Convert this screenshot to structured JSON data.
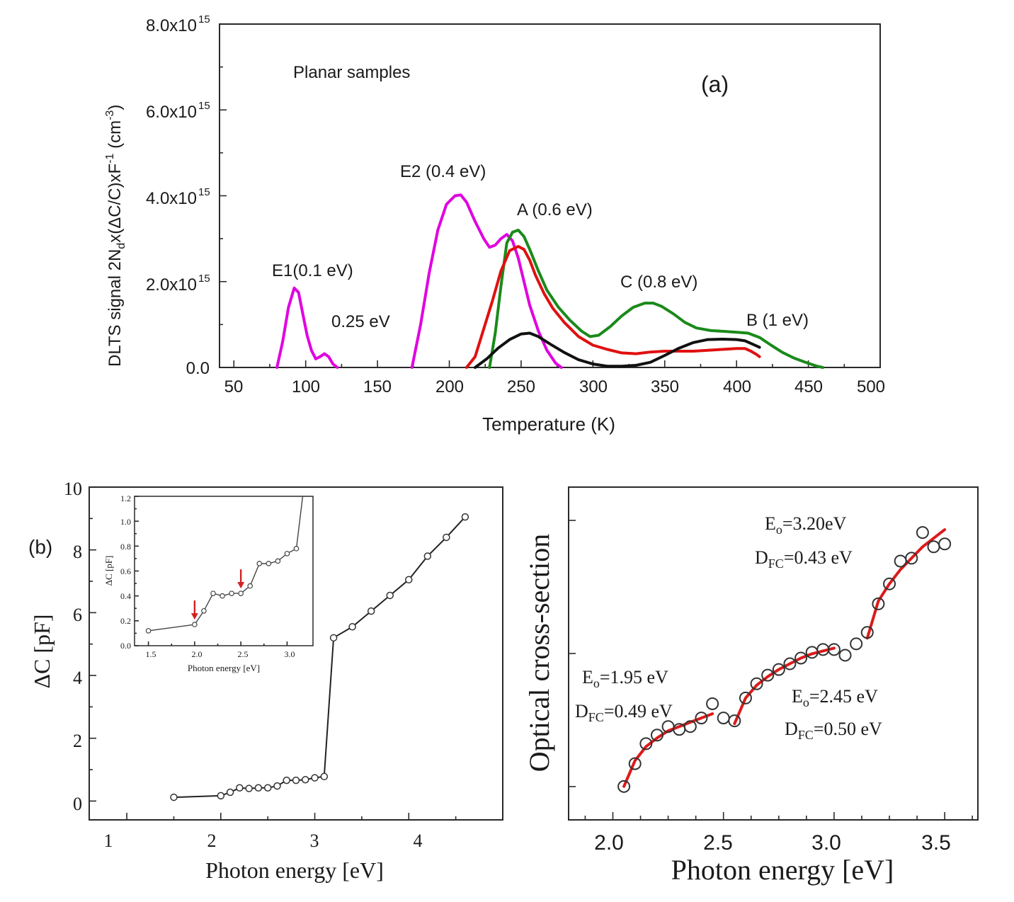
{
  "colors": {
    "magenta": "#e000e0",
    "green": "#1a8a1a",
    "red": "#e01010",
    "black": "#111111",
    "fit_red": "#dd1a1a",
    "arrow_red": "#d42020"
  },
  "panel_a": {
    "label": "(a)",
    "sample_label": "Planar samples",
    "xlabel": "Temperature (K)",
    "ylabel": {
      "part1": "DLTS signal 2N",
      "sub": "d",
      "part2": "x(ΔC/C)xF",
      "sup1": "-1",
      "part3": " (cm",
      "sup2": "-3",
      "part4": ")"
    },
    "ytick_mantissa": [
      "0.0",
      "2.0x10",
      "4.0x10",
      "6.0x10",
      "8.0x10"
    ],
    "ytick_exp": [
      "",
      "15",
      "15",
      "15",
      "15"
    ],
    "xticks": [
      "50",
      "100",
      "150",
      "200",
      "250",
      "300",
      "350",
      "400",
      "450",
      "500"
    ],
    "annotations": {
      "e1": "E1(0.1 eV)",
      "e025": "0.25 eV",
      "e2": "E2 (0.4 eV)",
      "a": "A (0.6 eV)",
      "c": "C (0.8 eV)",
      "b": "B (1 eV)"
    }
  },
  "panel_b": {
    "label": "(b)",
    "xlabel": "Photon energy [eV]",
    "ylabel": "ΔC [pF]",
    "xticks": [
      "1",
      "2",
      "3",
      "4"
    ],
    "yticks": [
      "0",
      "2",
      "4",
      "6",
      "8",
      "10"
    ],
    "inset": {
      "xlabel": "Photon energy [eV]",
      "ylabel": "ΔC [pF]",
      "xticks": [
        "1.5",
        "2.0",
        "2.5",
        "3.0"
      ],
      "yticks": [
        "0.0",
        "0.2",
        "0.4",
        "0.6",
        "0.8",
        "1.0",
        "1.2"
      ]
    }
  },
  "panel_c": {
    "xlabel": "Photon energy [eV]",
    "ylabel": "Optical cross-section",
    "xticks": [
      "2.0",
      "2.5",
      "3.0",
      "3.5"
    ],
    "ann1": {
      "e_pre": "E",
      "e_sub": "o",
      "e_val": "=1.95 eV",
      "d_pre": "D",
      "d_sub": "FC",
      "d_val": "=0.49 eV"
    },
    "ann2": {
      "e_pre": "E",
      "e_sub": "o",
      "e_val": "=2.45 eV",
      "d_pre": "D",
      "d_sub": "FC",
      "d_val": "=0.50 eV"
    },
    "ann3": {
      "e_pre": "E",
      "e_sub": "o",
      "e_val": "=3.20eV",
      "d_pre": "D",
      "d_sub": "FC",
      "d_val": "=0.43 eV"
    }
  },
  "chart_data": [
    {
      "type": "line",
      "id": "a",
      "title": "Planar samples",
      "xlabel": "Temperature (K)",
      "ylabel": "DLTS signal 2Nd x(ΔC/C)xF^-1 (cm^-3)",
      "xlim": [
        40,
        500
      ],
      "ylim": [
        0,
        8000000000000000.0
      ],
      "series": [
        {
          "name": "magenta",
          "color": "#e000e0",
          "x": [
            80,
            84,
            88,
            92,
            95,
            98,
            101,
            104,
            107,
            110,
            113,
            116,
            119,
            122,
            null,
            174,
            180,
            186,
            192,
            198,
            204,
            208,
            212,
            218,
            224,
            228,
            232,
            236,
            240,
            244,
            248,
            252,
            256,
            262,
            268,
            274,
            278
          ],
          "y": [
            0,
            600000000000000.0,
            1400000000000000.0,
            1850000000000000.0,
            1750000000000000.0,
            1250000000000000.0,
            750000000000000.0,
            400000000000000.0,
            200000000000000.0,
            250000000000000.0,
            320000000000000.0,
            250000000000000.0,
            80000000000000.0,
            0,
            null,
            0,
            1000000000000000.0,
            2200000000000000.0,
            3200000000000000.0,
            3800000000000000.0,
            4000000000000000.0,
            4020000000000000.0,
            3850000000000000.0,
            3400000000000000.0,
            3000000000000000.0,
            2800000000000000.0,
            2850000000000000.0,
            3000000000000000.0,
            3100000000000000.0,
            2950000000000000.0,
            2550000000000000.0,
            2000000000000000.0,
            1450000000000000.0,
            850000000000000.0,
            400000000000000.0,
            100000000000000.0,
            0
          ]
        },
        {
          "name": "green",
          "color": "#1a8a1a",
          "x": [
            228,
            232,
            236,
            240,
            244,
            248,
            252,
            256,
            262,
            268,
            276,
            284,
            292,
            298,
            304,
            312,
            320,
            328,
            336,
            342,
            348,
            356,
            364,
            372,
            382,
            392,
            400,
            408,
            416,
            424,
            432,
            440,
            448,
            456,
            460
          ],
          "y": [
            0,
            800000000000000.0,
            1900000000000000.0,
            2900000000000000.0,
            3150000000000000.0,
            3200000000000000.0,
            3050000000000000.0,
            2750000000000000.0,
            2250000000000000.0,
            1800000000000000.0,
            1400000000000000.0,
            1100000000000000.0,
            850000000000000.0,
            720000000000000.0,
            750000000000000.0,
            950000000000000.0,
            1200000000000000.0,
            1400000000000000.0,
            1500000000000000.0,
            1500000000000000.0,
            1420000000000000.0,
            1250000000000000.0,
            1050000000000000.0,
            920000000000000.0,
            860000000000000.0,
            840000000000000.0,
            820000000000000.0,
            800000000000000.0,
            700000000000000.0,
            520000000000000.0,
            350000000000000.0,
            220000000000000.0,
            120000000000000.0,
            30000000000000.0,
            0
          ]
        },
        {
          "name": "red",
          "color": "#e01010",
          "x": [
            212,
            218,
            224,
            230,
            236,
            242,
            248,
            252,
            256,
            260,
            266,
            272,
            280,
            290,
            300,
            310,
            320,
            330,
            340,
            350,
            360,
            370,
            380,
            390,
            400,
            406,
            410,
            414,
            416
          ],
          "y": [
            0,
            250000000000000.0,
            900000000000000.0,
            1550000000000000.0,
            2250000000000000.0,
            2720000000000000.0,
            2820000000000000.0,
            2750000000000000.0,
            2500000000000000.0,
            2150000000000000.0,
            1720000000000000.0,
            1380000000000000.0,
            1050000000000000.0,
            720000000000000.0,
            520000000000000.0,
            420000000000000.0,
            340000000000000.0,
            320000000000000.0,
            360000000000000.0,
            380000000000000.0,
            380000000000000.0,
            380000000000000.0,
            400000000000000.0,
            420000000000000.0,
            440000000000000.0,
            440000000000000.0,
            380000000000000.0,
            300000000000000.0,
            250000000000000.0
          ]
        },
        {
          "name": "black",
          "color": "#111111",
          "x": [
            218,
            226,
            234,
            242,
            250,
            256,
            262,
            270,
            280,
            290,
            300,
            310,
            320,
            330,
            340,
            350,
            360,
            370,
            380,
            390,
            400,
            406,
            410,
            414,
            416
          ],
          "y": [
            0,
            200000000000000.0,
            450000000000000.0,
            650000000000000.0,
            780000000000000.0,
            800000000000000.0,
            720000000000000.0,
            550000000000000.0,
            350000000000000.0,
            180000000000000.0,
            80000000000000.0,
            30000000000000.0,
            30000000000000.0,
            50000000000000.0,
            120000000000000.0,
            280000000000000.0,
            450000000000000.0,
            580000000000000.0,
            650000000000000.0,
            660000000000000.0,
            650000000000000.0,
            620000000000000.0,
            560000000000000.0,
            500000000000000.0,
            470000000000000.0
          ]
        }
      ]
    },
    {
      "type": "line",
      "id": "b",
      "xlabel": "Photon energy [eV]",
      "ylabel": "ΔC [pF]",
      "xlim": [
        0.6,
        5.0
      ],
      "ylim": [
        -0.6,
        10
      ],
      "series": [
        {
          "name": "ΔC",
          "marker": "open-circle",
          "x": [
            1.5,
            2.0,
            2.1,
            2.2,
            2.3,
            2.4,
            2.5,
            2.6,
            2.7,
            2.8,
            2.9,
            3.0,
            3.1,
            3.2,
            3.4,
            3.6,
            3.8,
            4.0,
            4.2,
            4.4,
            4.6
          ],
          "y": [
            0.12,
            0.17,
            0.28,
            0.42,
            0.4,
            0.42,
            0.42,
            0.48,
            0.66,
            0.66,
            0.68,
            0.74,
            0.78,
            5.2,
            5.55,
            6.05,
            6.55,
            7.05,
            7.8,
            8.4,
            9.05
          ]
        }
      ]
    },
    {
      "type": "line",
      "id": "b_inset",
      "xlabel": "Photon energy [eV]",
      "ylabel": "ΔC [pF]",
      "xlim": [
        1.35,
        3.28
      ],
      "ylim": [
        0,
        1.2
      ],
      "annotations": [
        {
          "type": "arrow",
          "x": 2.0
        },
        {
          "type": "arrow",
          "x": 2.5
        }
      ],
      "series": [
        {
          "name": "ΔC",
          "marker": "open-circle",
          "x": [
            1.5,
            2.0,
            2.1,
            2.2,
            2.3,
            2.4,
            2.5,
            2.6,
            2.7,
            2.8,
            2.9,
            3.0,
            3.1
          ],
          "y": [
            0.12,
            0.17,
            0.28,
            0.42,
            0.4,
            0.42,
            0.42,
            0.48,
            0.66,
            0.66,
            0.68,
            0.74,
            0.78
          ]
        }
      ]
    },
    {
      "type": "scatter",
      "id": "c",
      "xlabel": "Photon energy [eV]",
      "ylabel": "Optical cross-section",
      "xlim": [
        1.8,
        3.65
      ],
      "ylim": [
        0,
        1
      ],
      "series": [
        {
          "name": "data",
          "marker": "open-circle",
          "x": [
            2.05,
            2.1,
            2.15,
            2.2,
            2.25,
            2.3,
            2.35,
            2.4,
            2.45,
            2.5,
            2.55,
            2.6,
            2.65,
            2.7,
            2.75,
            2.8,
            2.85,
            2.9,
            2.95,
            3.0,
            3.05,
            3.1,
            3.15,
            3.2,
            3.25,
            3.3,
            3.35,
            3.4,
            3.45,
            3.5
          ],
          "y": [
            0.06,
            0.14,
            0.21,
            0.24,
            0.27,
            0.26,
            0.27,
            0.3,
            0.35,
            0.3,
            0.29,
            0.37,
            0.42,
            0.45,
            0.47,
            0.49,
            0.51,
            0.53,
            0.54,
            0.54,
            0.52,
            0.56,
            0.6,
            0.7,
            0.77,
            0.85,
            0.86,
            0.95,
            0.9,
            0.91
          ]
        },
        {
          "name": "fit 1.95 eV",
          "color": "#dd1a1a",
          "x": [
            2.05,
            2.1,
            2.15,
            2.2,
            2.25,
            2.3,
            2.35,
            2.4,
            2.45
          ],
          "y": [
            0.06,
            0.15,
            0.2,
            0.23,
            0.255,
            0.27,
            0.285,
            0.3,
            0.315
          ]
        },
        {
          "name": "fit 2.45 eV",
          "color": "#dd1a1a",
          "x": [
            2.55,
            2.6,
            2.65,
            2.7,
            2.75,
            2.8,
            2.85,
            2.9,
            2.95,
            3.0
          ],
          "y": [
            0.28,
            0.37,
            0.415,
            0.445,
            0.47,
            0.49,
            0.51,
            0.525,
            0.535,
            0.545
          ]
        },
        {
          "name": "fit 3.20 eV",
          "color": "#dd1a1a",
          "x": [
            3.15,
            3.2,
            3.25,
            3.3,
            3.35,
            3.4,
            3.45,
            3.5
          ],
          "y": [
            0.58,
            0.71,
            0.77,
            0.82,
            0.86,
            0.9,
            0.93,
            0.96
          ]
        }
      ]
    }
  ]
}
